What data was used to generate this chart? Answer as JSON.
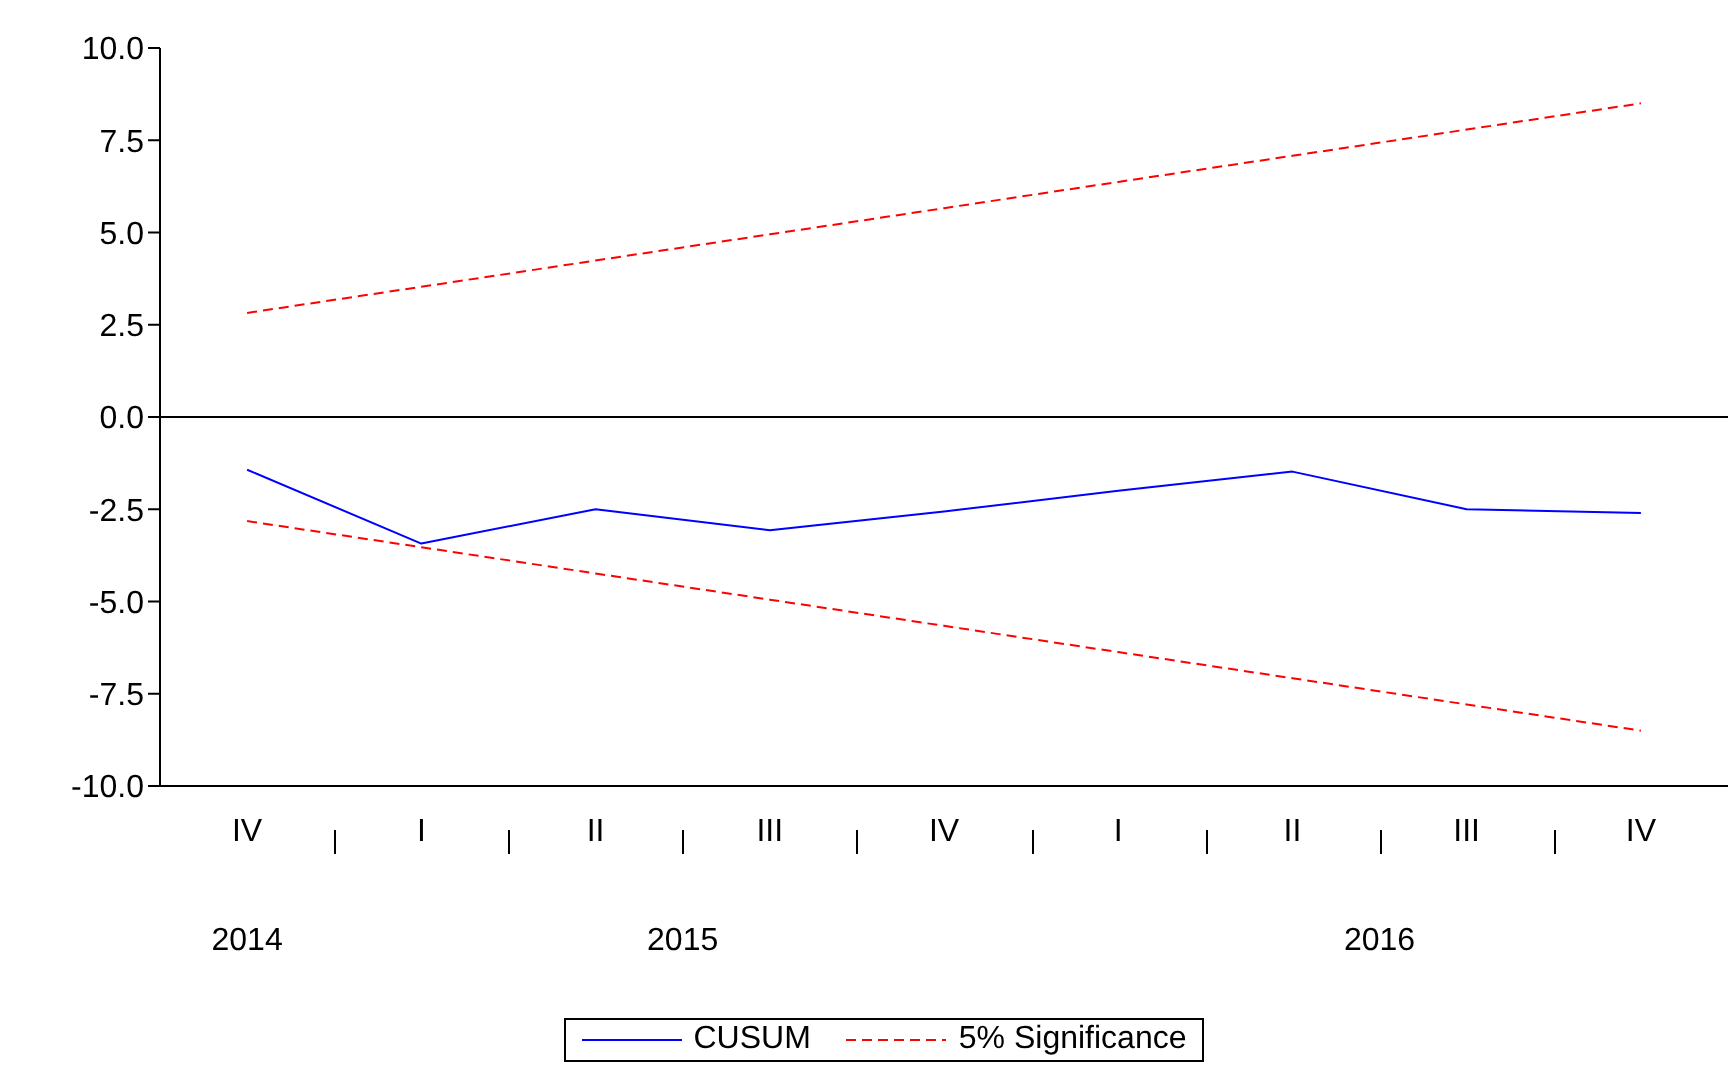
{
  "chart_data": {
    "type": "line",
    "categories": [
      "IV",
      "I",
      "II",
      "III",
      "IV",
      "I",
      "II",
      "III",
      "IV"
    ],
    "series": [
      {
        "name": "CUSUM",
        "color": "#0000ff",
        "line_style": "solid",
        "values": [
          -1.43,
          -3.43,
          -2.5,
          -3.07,
          -2.56,
          -2.0,
          -1.48,
          -2.5,
          -2.6
        ]
      },
      {
        "name": "5% Significance",
        "color": "#ff0000",
        "line_style": "dashed",
        "values": [
          2.82,
          3.53,
          4.24,
          4.95,
          5.66,
          6.37,
          7.08,
          7.79,
          8.5
        ]
      },
      {
        "color": "#ff0000",
        "line_style": "dashed",
        "values": [
          -2.82,
          -3.53,
          -4.24,
          -4.95,
          -5.66,
          -6.37,
          -7.08,
          -7.79,
          -8.5
        ]
      }
    ],
    "ylim": [
      -10,
      10
    ],
    "yticks": [
      {
        "value": -10,
        "label": "-10.0"
      },
      {
        "value": -7.5,
        "label": "-7.5"
      },
      {
        "value": -5,
        "label": "-5.0"
      },
      {
        "value": -2.5,
        "label": "-2.5"
      },
      {
        "value": 0,
        "label": "0.0"
      },
      {
        "value": 2.5,
        "label": "2.5"
      },
      {
        "value": 5,
        "label": "5.0"
      },
      {
        "value": 7.5,
        "label": "7.5"
      },
      {
        "value": 10,
        "label": "10.0"
      }
    ],
    "ref_lines": [
      {
        "axis": "y",
        "value": 0,
        "color": "#000000"
      }
    ],
    "annotations": [
      "2014",
      "2015",
      "2016"
    ],
    "grid": false,
    "legend": "bottom",
    "marker": "none"
  }
}
